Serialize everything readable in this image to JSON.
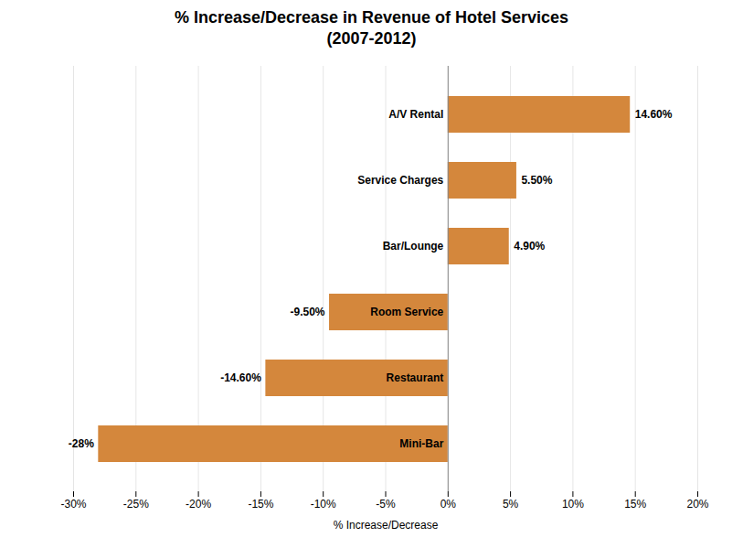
{
  "chart_data": {
    "type": "bar",
    "orientation": "horizontal",
    "title": "% Increase/Decrease in Revenue of Hotel Services\n(2007-2012)",
    "categories": [
      "Mini-Bar",
      "Restaurant",
      "Room Service",
      "Bar/Lounge",
      "Service Charges",
      "A/V Rental"
    ],
    "values": [
      -28.0,
      -14.6,
      -9.5,
      4.9,
      5.5,
      14.6
    ],
    "value_labels": [
      "-28%",
      "-14.60%",
      "-9.50%",
      "4.90%",
      "5.50%",
      "14.60%"
    ],
    "data_labels": true,
    "color": "#D4873C",
    "xlabel": "% Increase/Decrease",
    "xlim": [
      -30,
      20
    ],
    "xticks": [
      {
        "value": -30,
        "label": "-30%"
      },
      {
        "value": -25,
        "label": "-25%"
      },
      {
        "value": -20,
        "label": "-20%"
      },
      {
        "value": -15,
        "label": "-15%"
      },
      {
        "value": -10,
        "label": "-10%"
      },
      {
        "value": -5,
        "label": "-5%"
      },
      {
        "value": 0,
        "label": "0%"
      },
      {
        "value": 5,
        "label": "5%"
      },
      {
        "value": 10,
        "label": "10%"
      },
      {
        "value": 15,
        "label": "15%"
      },
      {
        "value": 20,
        "label": "20%"
      }
    ],
    "grid": true
  }
}
